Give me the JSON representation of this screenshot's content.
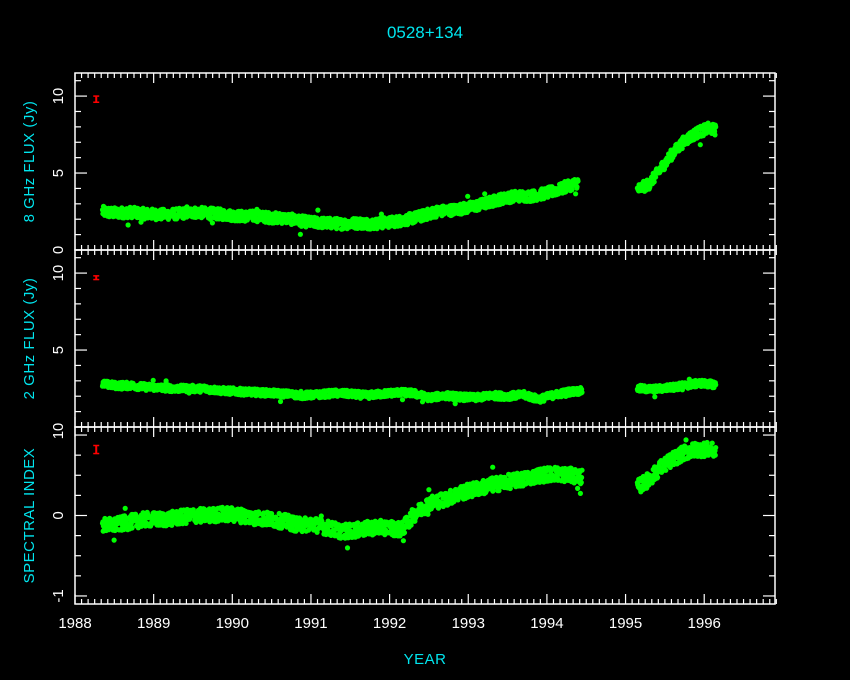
{
  "chart_data": {
    "type": "scatter",
    "title": "0528+134",
    "xlabel": "YEAR",
    "x_tick_labels": [
      "1988",
      "1989",
      "1990",
      "1991",
      "1992",
      "1993",
      "1994",
      "1995",
      "1996"
    ],
    "xlim": [
      1988.0,
      1996.9
    ],
    "colors": {
      "background": "#000000",
      "frame": "#ffffff",
      "text": "#00e5ee",
      "points": "#00ff00",
      "error_bar": "#ff0000"
    },
    "panels": [
      {
        "ylabel": "8 GHz FLUX (Jy)",
        "ylim": [
          0,
          11.5
        ],
        "y_ticks": [
          0,
          5,
          10
        ],
        "error_bar": {
          "x": 1988.27,
          "y": 9.8,
          "half_height": 0.2
        },
        "points": [
          [
            1988.35,
            2.5
          ],
          [
            1988.5,
            2.4
          ],
          [
            1988.7,
            2.45
          ],
          [
            1988.9,
            2.35
          ],
          [
            1989.1,
            2.3
          ],
          [
            1989.3,
            2.35
          ],
          [
            1989.5,
            2.45
          ],
          [
            1989.7,
            2.4
          ],
          [
            1989.9,
            2.3
          ],
          [
            1990.1,
            2.2
          ],
          [
            1990.3,
            2.2
          ],
          [
            1990.5,
            2.1
          ],
          [
            1990.7,
            2.05
          ],
          [
            1990.85,
            1.9
          ],
          [
            1991.0,
            1.8
          ],
          [
            1991.2,
            1.75
          ],
          [
            1991.4,
            1.7
          ],
          [
            1991.6,
            1.75
          ],
          [
            1991.8,
            1.7
          ],
          [
            1992.0,
            1.8
          ],
          [
            1992.2,
            1.95
          ],
          [
            1992.4,
            2.2
          ],
          [
            1992.6,
            2.5
          ],
          [
            1992.8,
            2.6
          ],
          [
            1993.0,
            2.75
          ],
          [
            1993.2,
            3.0
          ],
          [
            1993.4,
            3.3
          ],
          [
            1993.6,
            3.5
          ],
          [
            1993.8,
            3.5
          ],
          [
            1994.0,
            3.7
          ],
          [
            1994.2,
            4.0
          ],
          [
            1994.4,
            4.4
          ],
          [
            1995.15,
            3.9
          ],
          [
            1995.3,
            4.3
          ],
          [
            1995.45,
            5.3
          ],
          [
            1995.6,
            6.3
          ],
          [
            1995.75,
            7.1
          ],
          [
            1995.9,
            7.6
          ],
          [
            1996.05,
            7.9
          ],
          [
            1996.15,
            7.8
          ]
        ],
        "scatter_band": 0.35
      },
      {
        "ylabel": "2 GHz FLUX (Jy)",
        "ylim": [
          0,
          11.5
        ],
        "y_ticks": [
          0,
          5,
          10
        ],
        "error_bar": {
          "x": 1988.27,
          "y": 9.7,
          "half_height": 0.12
        },
        "points": [
          [
            1988.35,
            2.8
          ],
          [
            1988.5,
            2.7
          ],
          [
            1988.7,
            2.7
          ],
          [
            1988.9,
            2.6
          ],
          [
            1989.1,
            2.55
          ],
          [
            1989.3,
            2.5
          ],
          [
            1989.5,
            2.5
          ],
          [
            1989.7,
            2.45
          ],
          [
            1989.9,
            2.35
          ],
          [
            1990.1,
            2.3
          ],
          [
            1990.3,
            2.25
          ],
          [
            1990.5,
            2.2
          ],
          [
            1990.7,
            2.15
          ],
          [
            1990.9,
            2.05
          ],
          [
            1991.1,
            2.1
          ],
          [
            1991.3,
            2.2
          ],
          [
            1991.5,
            2.15
          ],
          [
            1991.7,
            2.05
          ],
          [
            1991.9,
            2.15
          ],
          [
            1992.1,
            2.25
          ],
          [
            1992.3,
            2.2
          ],
          [
            1992.5,
            1.9
          ],
          [
            1992.7,
            2.05
          ],
          [
            1992.9,
            1.95
          ],
          [
            1993.1,
            1.9
          ],
          [
            1993.3,
            2.05
          ],
          [
            1993.5,
            2.0
          ],
          [
            1993.7,
            2.1
          ],
          [
            1993.9,
            1.8
          ],
          [
            1994.1,
            2.1
          ],
          [
            1994.3,
            2.3
          ],
          [
            1994.45,
            2.35
          ],
          [
            1995.15,
            2.5
          ],
          [
            1995.35,
            2.45
          ],
          [
            1995.55,
            2.55
          ],
          [
            1995.75,
            2.7
          ],
          [
            1995.95,
            2.85
          ],
          [
            1996.15,
            2.75
          ]
        ],
        "scatter_band": 0.22
      },
      {
        "ylabel": "SPECTRAL INDEX",
        "ylim": [
          -1.1,
          1.1
        ],
        "y_ticks": [
          -1,
          0,
          1
        ],
        "error_bar": {
          "x": 1988.27,
          "y": 0.82,
          "half_height": 0.05
        },
        "points": [
          [
            1988.35,
            -0.12
          ],
          [
            1988.5,
            -0.12
          ],
          [
            1988.7,
            -0.08
          ],
          [
            1988.9,
            -0.05
          ],
          [
            1989.1,
            -0.05
          ],
          [
            1989.3,
            -0.03
          ],
          [
            1989.5,
            0.0
          ],
          [
            1989.7,
            0.0
          ],
          [
            1989.9,
            0.02
          ],
          [
            1990.1,
            0.0
          ],
          [
            1990.3,
            -0.03
          ],
          [
            1990.5,
            -0.05
          ],
          [
            1990.7,
            -0.08
          ],
          [
            1990.85,
            -0.12
          ],
          [
            1991.0,
            -0.1
          ],
          [
            1991.2,
            -0.15
          ],
          [
            1991.4,
            -0.2
          ],
          [
            1991.6,
            -0.18
          ],
          [
            1991.8,
            -0.15
          ],
          [
            1992.0,
            -0.15
          ],
          [
            1992.15,
            -0.18
          ],
          [
            1992.3,
            0.0
          ],
          [
            1992.5,
            0.15
          ],
          [
            1992.7,
            0.2
          ],
          [
            1992.9,
            0.28
          ],
          [
            1993.1,
            0.33
          ],
          [
            1993.3,
            0.38
          ],
          [
            1993.5,
            0.42
          ],
          [
            1993.7,
            0.45
          ],
          [
            1993.9,
            0.5
          ],
          [
            1994.1,
            0.52
          ],
          [
            1994.3,
            0.5
          ],
          [
            1994.45,
            0.48
          ],
          [
            1995.15,
            0.35
          ],
          [
            1995.3,
            0.45
          ],
          [
            1995.45,
            0.6
          ],
          [
            1995.6,
            0.7
          ],
          [
            1995.75,
            0.78
          ],
          [
            1995.9,
            0.82
          ],
          [
            1996.05,
            0.82
          ],
          [
            1996.15,
            0.8
          ]
        ],
        "scatter_band": 0.09
      }
    ]
  }
}
